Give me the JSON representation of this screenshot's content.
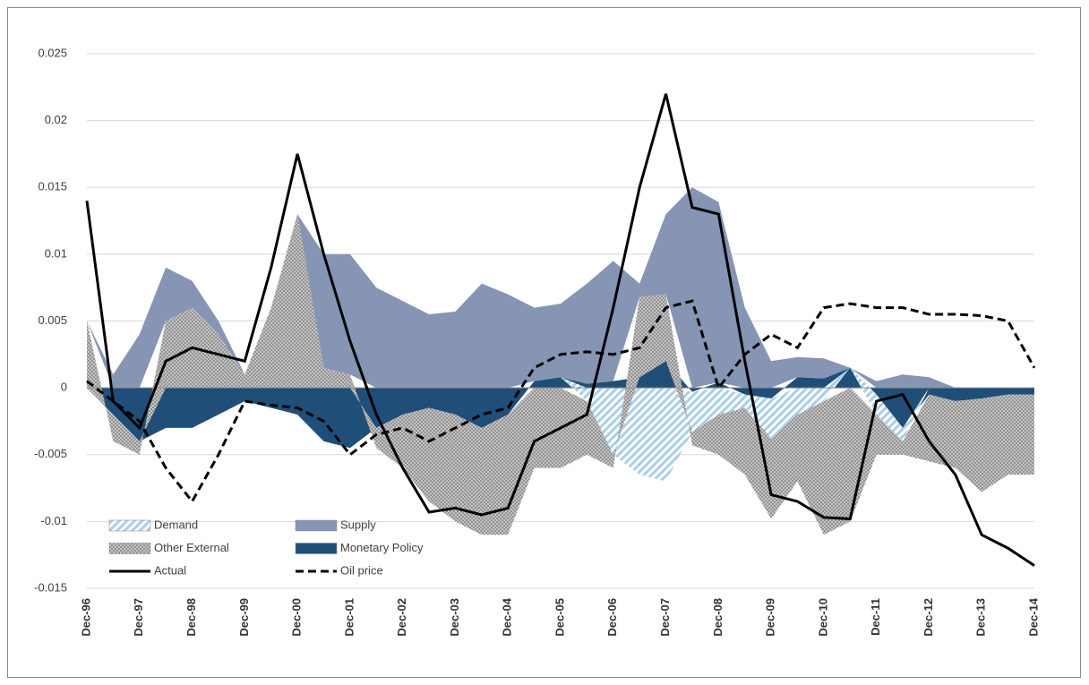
{
  "chart_data": {
    "type": "stacked-area-line",
    "categories": [
      "Dec-96",
      null,
      "Dec-97",
      null,
      "Dec-98",
      null,
      "Dec-99",
      null,
      "Dec-00",
      null,
      "Dec-01",
      null,
      "Dec-02",
      null,
      "Dec-03",
      null,
      "Dec-04",
      null,
      "Dec-05",
      null,
      "Dec-06",
      null,
      "Dec-07",
      null,
      "Dec-08",
      null,
      "Dec-09",
      null,
      "Dec-10",
      null,
      "Dec-11",
      null,
      "Dec-12",
      null,
      "Dec-13",
      null,
      "Dec-14"
    ],
    "ylim": [
      -0.015,
      0.025
    ],
    "yticks": [
      -0.015,
      -0.01,
      -0.005,
      0,
      0.005,
      0.01,
      0.015,
      0.02,
      0.025
    ],
    "grid": true,
    "series": [
      {
        "name": "Demand",
        "kind": "area",
        "color": "#a9cfe8",
        "pattern": "hatch",
        "values": [
          0,
          0,
          0,
          0,
          0,
          0,
          0,
          0,
          0,
          0,
          0,
          0,
          0,
          0,
          0,
          0,
          0,
          0,
          0,
          -0.001,
          -0.005,
          -0.0065,
          -0.007,
          -0.003,
          -0.002,
          -0.001,
          -0.003,
          -0.002,
          -0.001,
          0,
          -0.0015,
          -0.001,
          0,
          0,
          0,
          0,
          0
        ]
      },
      {
        "name": "Supply",
        "kind": "area",
        "color": "#8595b3",
        "values": [
          0,
          0.001,
          0.004,
          0.004,
          0.002,
          0.001,
          0,
          0,
          0,
          0.0085,
          0.009,
          0.0075,
          0.0065,
          0.0055,
          0.0057,
          0.0078,
          0.007,
          0.0055,
          0.0055,
          0.0075,
          0.009,
          0.001,
          0.006,
          0.015,
          0.0135,
          0.006,
          0.002,
          0.0015,
          0.0015,
          0,
          0.0005,
          0.001,
          0.0008,
          0,
          0,
          0,
          0
        ]
      },
      {
        "name": "Other External",
        "kind": "area",
        "color": "#c4c4c4",
        "pattern": "dots",
        "values": [
          0.005,
          -0.002,
          -0.001,
          0.005,
          0.006,
          0.004,
          0.001,
          0.006,
          0.013,
          0.0015,
          0.001,
          -0.0015,
          -0.004,
          -0.007,
          -0.008,
          -0.008,
          -0.009,
          -0.006,
          -0.006,
          -0.004,
          -0.001,
          0.006,
          0.005,
          -0.001,
          -0.003,
          -0.005,
          -0.006,
          -0.005,
          -0.01,
          -0.01,
          -0.003,
          -0.001,
          -0.005,
          -0.005,
          -0.007,
          -0.006,
          -0.006
        ]
      },
      {
        "name": "Monetary Policy",
        "kind": "area",
        "color": "#1f4e79",
        "values": [
          0,
          -0.002,
          -0.004,
          -0.003,
          -0.003,
          -0.002,
          -0.001,
          -0.0015,
          -0.002,
          -0.004,
          -0.0045,
          -0.003,
          -0.002,
          -0.0015,
          -0.002,
          -0.003,
          -0.002,
          0.0005,
          0.0008,
          0.0003,
          0.0005,
          0.0008,
          0.002,
          -0.0003,
          0.0004,
          -0.0005,
          -0.0008,
          0.0008,
          0.0007,
          0.0015,
          -0.0005,
          -0.003,
          -0.0005,
          -0.001,
          -0.0008,
          -0.0005,
          -0.0005
        ]
      },
      {
        "name": "Actual",
        "kind": "line",
        "color": "#000000",
        "dash": "solid",
        "values": [
          0.014,
          -0.001,
          -0.003,
          0.002,
          0.003,
          0.0025,
          0.002,
          0.009,
          0.0175,
          0.01,
          0.0035,
          -0.002,
          -0.006,
          -0.0093,
          -0.009,
          -0.0095,
          -0.009,
          -0.004,
          -0.003,
          -0.002,
          0.006,
          0.015,
          0.022,
          0.0135,
          0.013,
          0.002,
          -0.008,
          -0.0085,
          -0.0097,
          -0.0098,
          -0.001,
          -0.0005,
          -0.004,
          -0.0065,
          -0.011,
          -0.012,
          -0.0133
        ]
      },
      {
        "name": "Oil price",
        "kind": "line",
        "color": "#000000",
        "dash": "dashed",
        "values": [
          0.0005,
          -0.001,
          -0.0025,
          -0.006,
          -0.0085,
          -0.005,
          -0.001,
          -0.0013,
          -0.0015,
          -0.0025,
          -0.005,
          -0.0035,
          -0.003,
          -0.004,
          -0.003,
          -0.002,
          -0.0015,
          0.0015,
          0.0025,
          0.0027,
          0.0025,
          0.003,
          0.006,
          0.0065,
          0,
          0.0025,
          0.004,
          0.003,
          0.006,
          0.0063,
          0.006,
          0.006,
          0.0055,
          0.0055,
          0.0054,
          0.005,
          0.0015
        ]
      }
    ]
  }
}
